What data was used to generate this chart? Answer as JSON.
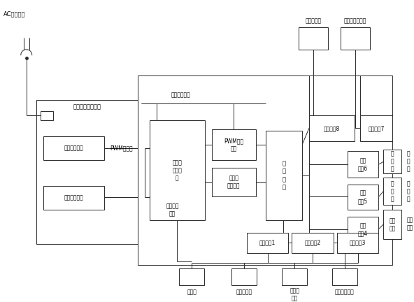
{
  "bg": "#ffffff",
  "lc": "#2a2a2a",
  "lw": 0.7,
  "fs": 5.5,
  "fs_label": 6.0,
  "elements": {
    "ac_label": "AC电源输入",
    "sw_psu_label": "开关电源控制电路",
    "cool_ctrl_label": "制冷控制电路",
    "cool_out_v_label": "制冷输出电压",
    "pwm_line_label": "PWM数据线",
    "relay_ch_label": "继电器\n冷热转\n换",
    "cool_in_v_label": "制冷输入电压",
    "cool_out_v2_label": "制冷输出\n电压",
    "pwm_ctrl_label": "PWM控制\n电路",
    "relay_ctrl_label": "继电器\n控制电路",
    "main_ctrl_label": "主\n控\n制\n器",
    "ctrl8_label": "控制电路8",
    "ctrl7_label": "控制电路7",
    "ctrl6_label": "控制\n电路6",
    "ctrl5_label": "控制\n电路5",
    "ctrl4_label": "控制\n电路4",
    "ctrl1_label": "控制电路1",
    "ctrl2_label": "控制电路2",
    "ctrl3_label": "控制电路3",
    "humid_label": "湿度感应器",
    "temp_label": "箱内温度感应器",
    "cooler_label": "制冷器",
    "fan_label": "内循环风扇",
    "env_label": "环境感\n应器",
    "fin_label": "冷翅片感应器",
    "light_label": "光\n环\n灯",
    "display_label": "显\n示\n器",
    "inner_light_label": "箱内\n照明"
  }
}
